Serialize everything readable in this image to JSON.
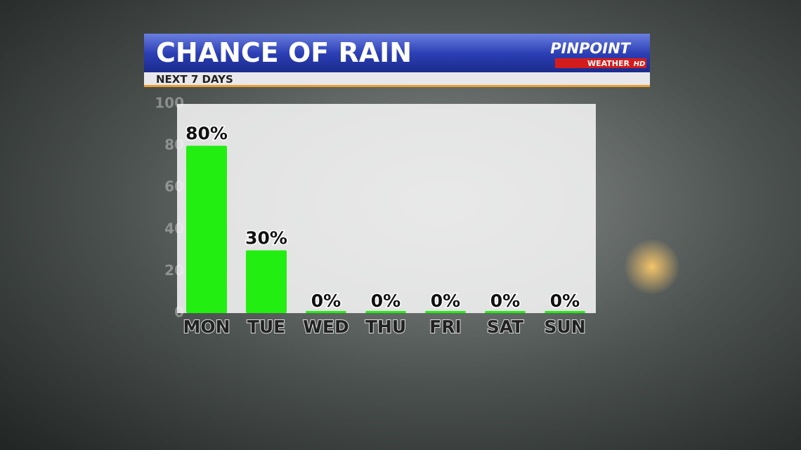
{
  "chart_data": {
    "type": "bar",
    "title": "CHANCE OF RAIN",
    "subtitle": "NEXT 7 DAYS",
    "logo": {
      "brand": "PINPOINT",
      "sub": "WEATHER",
      "badge": "HD"
    },
    "categories": [
      "MON",
      "TUE",
      "WED",
      "THU",
      "FRI",
      "SAT",
      "SUN"
    ],
    "values": [
      80,
      30,
      0,
      0,
      0,
      0,
      0
    ],
    "value_labels": [
      "80%",
      "30%",
      "0%",
      "0%",
      "0%",
      "0%",
      "0%"
    ],
    "color": "#22ee11",
    "ylim": [
      0,
      100
    ],
    "yticks": [
      0,
      20,
      40,
      60,
      80,
      100
    ]
  }
}
